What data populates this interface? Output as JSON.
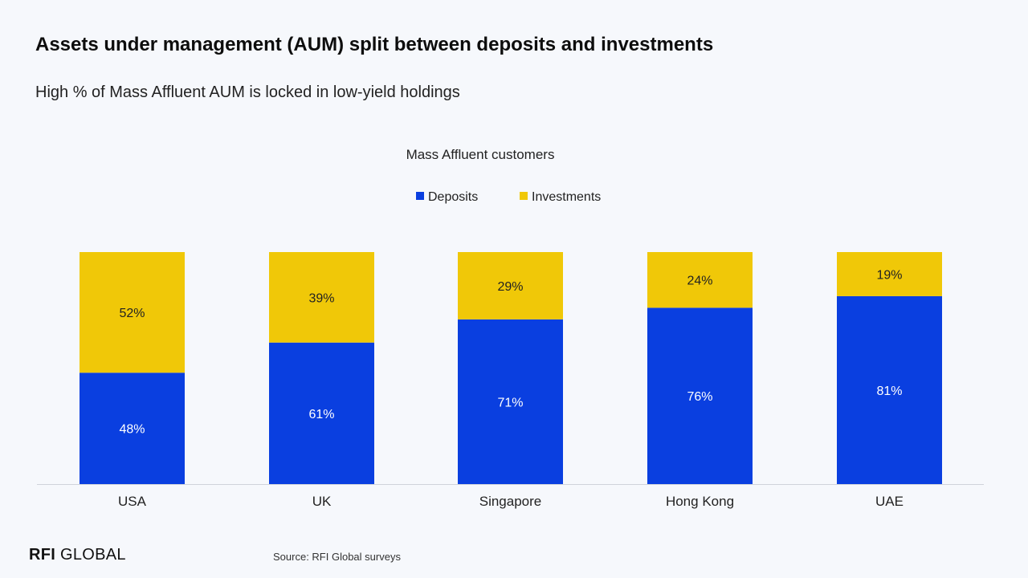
{
  "header": {
    "title": "Assets under management (AUM) split between deposits and investments",
    "subtitle": "High % of Mass Affluent AUM is locked in low-yield holdings"
  },
  "footer": {
    "logo_bold": "RFI",
    "logo_rest": "GLOBAL",
    "source": "Source: RFI Global surveys"
  },
  "chart_data": {
    "type": "bar",
    "stacked": true,
    "percent_stacked": true,
    "title": "Mass Affluent customers",
    "categories": [
      "USA",
      "UK",
      "Singapore",
      "Hong Kong",
      "UAE"
    ],
    "series": [
      {
        "name": "Deposits",
        "values": [
          48,
          61,
          71,
          76,
          81
        ],
        "labels": [
          "48%",
          "61%",
          "71%",
          "76%",
          "81%"
        ],
        "color": "#0a3fe0"
      },
      {
        "name": "Investments",
        "values": [
          52,
          39,
          29,
          24,
          19
        ],
        "labels": [
          "52%",
          "39%",
          "29%",
          "24%",
          "19%"
        ],
        "color": "#f0c808"
      }
    ],
    "ylim": [
      0,
      100
    ],
    "legend_position": "top-center",
    "grid": false
  }
}
